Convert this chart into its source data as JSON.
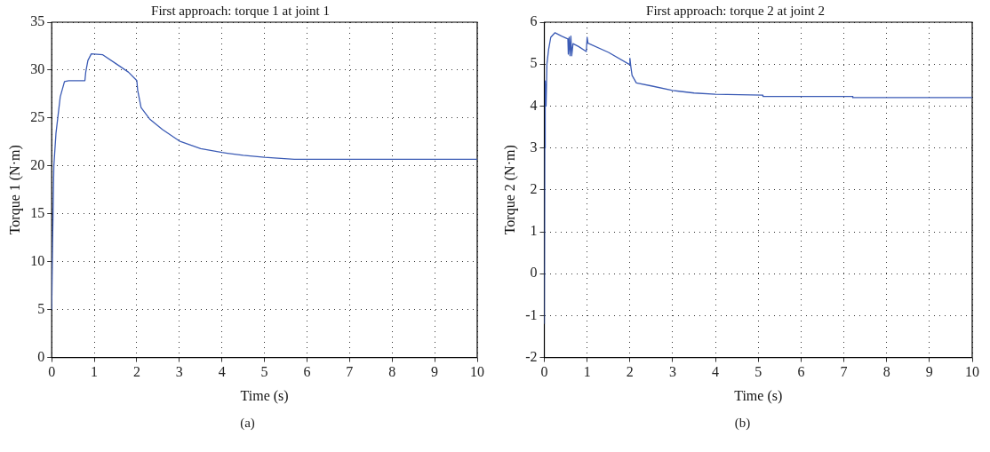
{
  "chart_data": [
    {
      "type": "line",
      "title": "First approach: torque 1 at joint 1",
      "xlabel": "Time (s)",
      "ylabel": "Torque 1 (N·m)",
      "annotations": [
        "(a)"
      ],
      "grid": true,
      "marker": "none",
      "line_style": "solid",
      "xlim": [
        0,
        10
      ],
      "xticks": [
        0,
        1,
        2,
        3,
        4,
        5,
        6,
        7,
        8,
        9,
        10
      ],
      "ylim": [
        0,
        35
      ],
      "yticks": [
        0,
        5,
        10,
        15,
        20,
        25,
        30,
        35
      ],
      "series": [
        {
          "color": "#3b5bb5",
          "x": [
            0,
            0.02,
            0.05,
            0.1,
            0.2,
            0.3,
            0.4,
            0.78,
            0.8,
            0.85,
            0.93,
            1.2,
            1.5,
            1.8,
            2.0,
            2.02,
            2.1,
            2.3,
            2.6,
            3.0,
            3.5,
            4.0,
            4.5,
            5.0,
            5.7,
            10
          ],
          "values": [
            5,
            12,
            20,
            23.4,
            27.2,
            28.8,
            28.9,
            28.9,
            29.8,
            31,
            31.7,
            31.6,
            30.7,
            29.8,
            28.9,
            27.9,
            26.1,
            24.9,
            23.8,
            22.6,
            21.8,
            21.4,
            21.1,
            20.9,
            20.7,
            20.7
          ]
        }
      ]
    },
    {
      "type": "line",
      "title": "First approach: torque 2 at joint 2",
      "xlabel": "Time (s)",
      "ylabel": "Torque 2 (N·m)",
      "annotations": [
        "(b)"
      ],
      "grid": true,
      "marker": "none",
      "line_style": "solid",
      "xlim": [
        0,
        10
      ],
      "xticks": [
        0,
        1,
        2,
        3,
        4,
        5,
        6,
        7,
        8,
        9,
        10
      ],
      "ylim": [
        -2,
        6
      ],
      "yticks": [
        -2,
        -1,
        0,
        1,
        2,
        3,
        4,
        5,
        6
      ],
      "series": [
        {
          "color": "#3b5bb5",
          "x": [
            0,
            0.01,
            0.02,
            0.04,
            0.06,
            0.1,
            0.15,
            0.25,
            0.4,
            0.55,
            0.56,
            0.58,
            0.6,
            0.62,
            0.64,
            0.67,
            0.8,
            0.98,
            1.0,
            1.02,
            1.5,
            1.99,
            2.0,
            2.02,
            2.05,
            2.15,
            2.5,
            3,
            3.5,
            4,
            5.1,
            5.11,
            7.2,
            7.21,
            10
          ],
          "values": [
            -1.2,
            3.0,
            4.6,
            4.0,
            5.0,
            5.35,
            5.64,
            5.75,
            5.67,
            5.6,
            5.24,
            5.64,
            5.2,
            5.67,
            5.2,
            5.49,
            5.42,
            5.3,
            5.64,
            5.5,
            5.28,
            4.99,
            5.14,
            4.95,
            4.73,
            4.55,
            4.48,
            4.37,
            4.31,
            4.28,
            4.26,
            4.23,
            4.23,
            4.2,
            4.2
          ]
        }
      ]
    }
  ]
}
